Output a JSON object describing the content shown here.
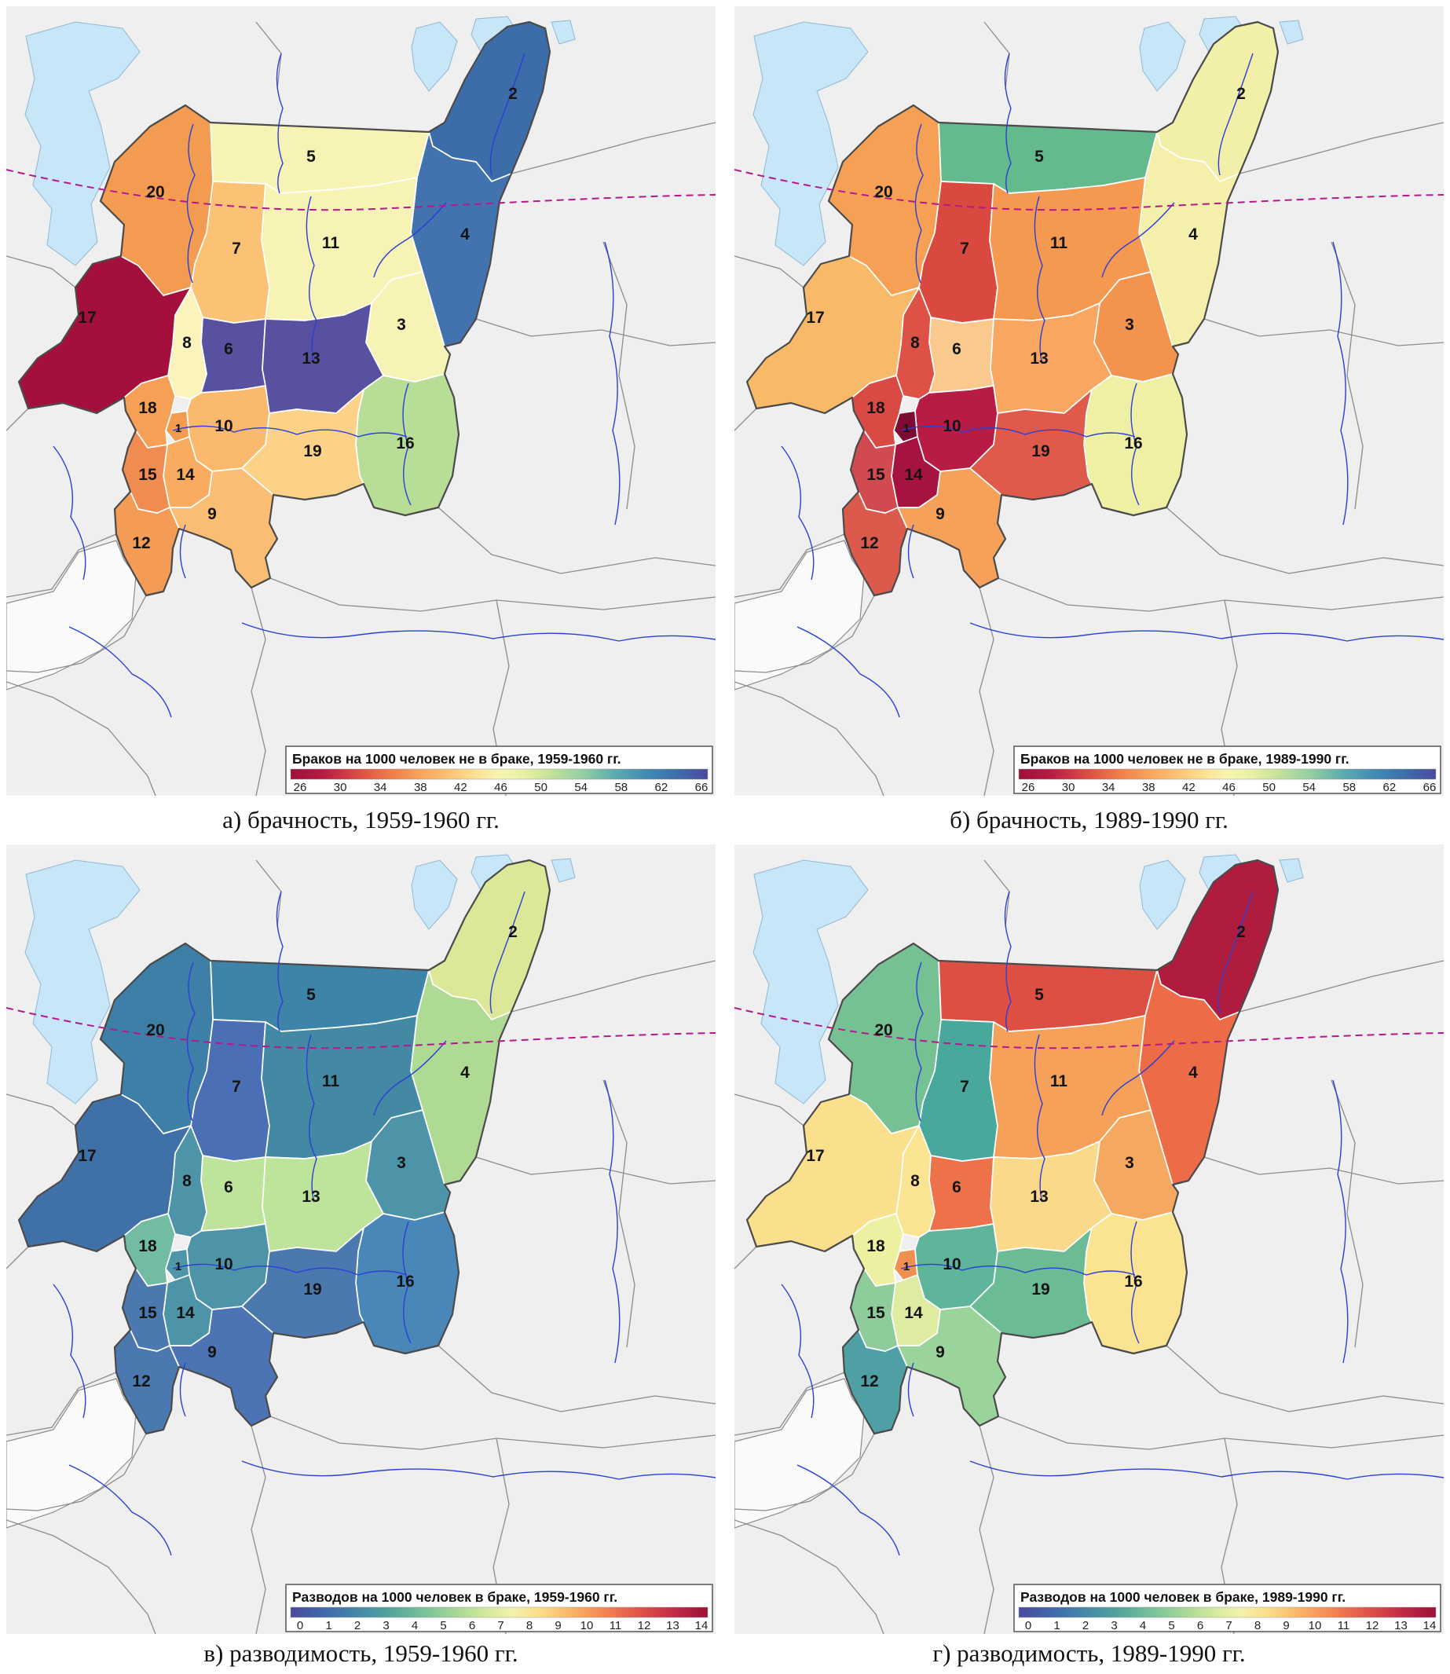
{
  "figure": {
    "district_numbers": [
      "1",
      "2",
      "3",
      "4",
      "5",
      "6",
      "7",
      "8",
      "9",
      "10",
      "11",
      "12",
      "13",
      "14",
      "15",
      "16",
      "17",
      "18",
      "19",
      "20"
    ],
    "map_colors": {
      "background": "#EFEFEF",
      "neighbor_fill": "#FAFAFA",
      "water": "#C7E6F7",
      "water_edge": "#8FB8D4",
      "river": "#2B3FD6",
      "neighbor_border": "#8C8C8C",
      "district_border": "#FFFFFF",
      "region_border": "#4A4A4A",
      "arctic_circle": "#B3188C",
      "label": "#141414",
      "legend_bg": "#FFFFFF",
      "legend_border": "#555555"
    },
    "ramps": {
      "marriage": [
        {
          "o": 0,
          "c": "#9C1039"
        },
        {
          "o": 0.08,
          "c": "#B91C45"
        },
        {
          "o": 0.16,
          "c": "#DD4A43"
        },
        {
          "o": 0.24,
          "c": "#F07C4B"
        },
        {
          "o": 0.32,
          "c": "#F9A95E"
        },
        {
          "o": 0.4,
          "c": "#FCCB7E"
        },
        {
          "o": 0.46,
          "c": "#FAE79E"
        },
        {
          "o": 0.5,
          "c": "#F7F5B2"
        },
        {
          "o": 0.56,
          "c": "#E7F0A4"
        },
        {
          "o": 0.62,
          "c": "#C6E29A"
        },
        {
          "o": 0.7,
          "c": "#93CFA2"
        },
        {
          "o": 0.78,
          "c": "#5BAAB0"
        },
        {
          "o": 0.86,
          "c": "#4187B4"
        },
        {
          "o": 0.93,
          "c": "#3D6DA9"
        },
        {
          "o": 1,
          "c": "#4B4A9E"
        }
      ],
      "divorce": [
        {
          "o": 0,
          "c": "#4B4A9E"
        },
        {
          "o": 0.08,
          "c": "#4068AC"
        },
        {
          "o": 0.16,
          "c": "#4489A8"
        },
        {
          "o": 0.24,
          "c": "#52A49C"
        },
        {
          "o": 0.32,
          "c": "#79C29A"
        },
        {
          "o": 0.4,
          "c": "#A8D895"
        },
        {
          "o": 0.47,
          "c": "#D4EA9C"
        },
        {
          "o": 0.53,
          "c": "#F2F2AC"
        },
        {
          "o": 0.6,
          "c": "#FBDC88"
        },
        {
          "o": 0.68,
          "c": "#F9B066"
        },
        {
          "o": 0.76,
          "c": "#F28050"
        },
        {
          "o": 0.84,
          "c": "#E05048"
        },
        {
          "o": 0.92,
          "c": "#C22A45"
        },
        {
          "o": 1,
          "c": "#9C1039"
        }
      ]
    },
    "panels": [
      {
        "id": "a",
        "caption": "а) брачность, 1959-1960 гг.",
        "legend_title": "Браков на 1000 человек не в браке, 1959-1960 гг.",
        "legend_ticks": [
          "26",
          "30",
          "34",
          "38",
          "42",
          "46",
          "50",
          "54",
          "58",
          "62",
          "66"
        ],
        "ramp": "marriage",
        "district_colors": {
          "1": "#F49B52",
          "2": "#3D6DA9",
          "3": "#F6F3B5",
          "4": "#4273AE",
          "5": "#F6F3B5",
          "6": "#5751A0",
          "7": "#FBC174",
          "8": "#FAF3BC",
          "9": "#FBBD74",
          "10": "#FBB96E",
          "11": "#F6F3B5",
          "12": "#F49B55",
          "13": "#5751A0",
          "14": "#F9AC60",
          "15": "#F08B52",
          "16": "#B7DD96",
          "17": "#A50F3C",
          "18": "#F5A054",
          "19": "#FCD289",
          "20": "#F49B52"
        }
      },
      {
        "id": "b",
        "caption": "б) брачность, 1989-1990 гг.",
        "legend_title": "Браков на 1000 человек не в браке, 1989-1990 гг.",
        "legend_ticks": [
          "26",
          "30",
          "34",
          "38",
          "42",
          "46",
          "50",
          "54",
          "58",
          "62",
          "66"
        ],
        "ramp": "marriage",
        "district_colors": {
          "1": "#7E0B33",
          "2": "#F2EFA8",
          "3": "#F2934E",
          "4": "#F4F0AC",
          "5": "#63BB8D",
          "6": "#FAC98E",
          "7": "#D94940",
          "8": "#DE5147",
          "9": "#F5A159",
          "10": "#B81C45",
          "11": "#F59850",
          "12": "#DC5A4B",
          "13": "#F8A660",
          "14": "#A61341",
          "15": "#D04A4F",
          "16": "#EFF0A3",
          "17": "#F8BA68",
          "18": "#D94A45",
          "19": "#E05A4C",
          "20": "#F5A054"
        }
      },
      {
        "id": "v",
        "caption": "в) разводимость, 1959-1960 гг.",
        "legend_title": "Разводов на 1000 человек в браке, 1959-1960 гг.",
        "legend_ticks": [
          "0",
          "1",
          "2",
          "3",
          "4",
          "5",
          "6",
          "7",
          "8",
          "9",
          "10",
          "11",
          "12",
          "13",
          "14"
        ],
        "ramp": "divorce",
        "district_colors": {
          "1": "#4E96A8",
          "2": "#DCE897",
          "3": "#4E94A8",
          "4": "#AFDA94",
          "5": "#3E84A8",
          "6": "#BEE49B",
          "7": "#4A6FB5",
          "8": "#4E94A8",
          "9": "#4C74B4",
          "10": "#4E94A8",
          "11": "#4489A4",
          "12": "#4C78B0",
          "13": "#BEE49B",
          "14": "#4E94A8",
          "15": "#4C78B0",
          "16": "#4887B8",
          "17": "#4070A8",
          "18": "#72BDA2",
          "19": "#4C78B0",
          "20": "#3E7FA8"
        }
      },
      {
        "id": "g",
        "caption": "г) разводимость, 1989-1990 гг.",
        "legend_title": "Разводов на 1000 человек в браке, 1989-1990 гг.",
        "legend_ticks": [
          "0",
          "1",
          "2",
          "3",
          "4",
          "5",
          "6",
          "7",
          "8",
          "9",
          "10",
          "11",
          "12",
          "13",
          "14"
        ],
        "ramp": "divorce",
        "district_colors": {
          "1": "#F09050",
          "2": "#B01C3E",
          "3": "#F5A860",
          "4": "#ED6B46",
          "5": "#DD4F43",
          "6": "#ED7149",
          "7": "#48A89C",
          "8": "#FAE491",
          "9": "#9AD49A",
          "10": "#5FB59C",
          "11": "#F5A159",
          "12": "#4FA0A4",
          "13": "#FAD98A",
          "14": "#DDECA0",
          "15": "#8FCC9C",
          "16": "#FAE391",
          "17": "#FAE08C",
          "18": "#ECF0A0",
          "19": "#6BBC94",
          "20": "#76C194"
        }
      }
    ]
  }
}
